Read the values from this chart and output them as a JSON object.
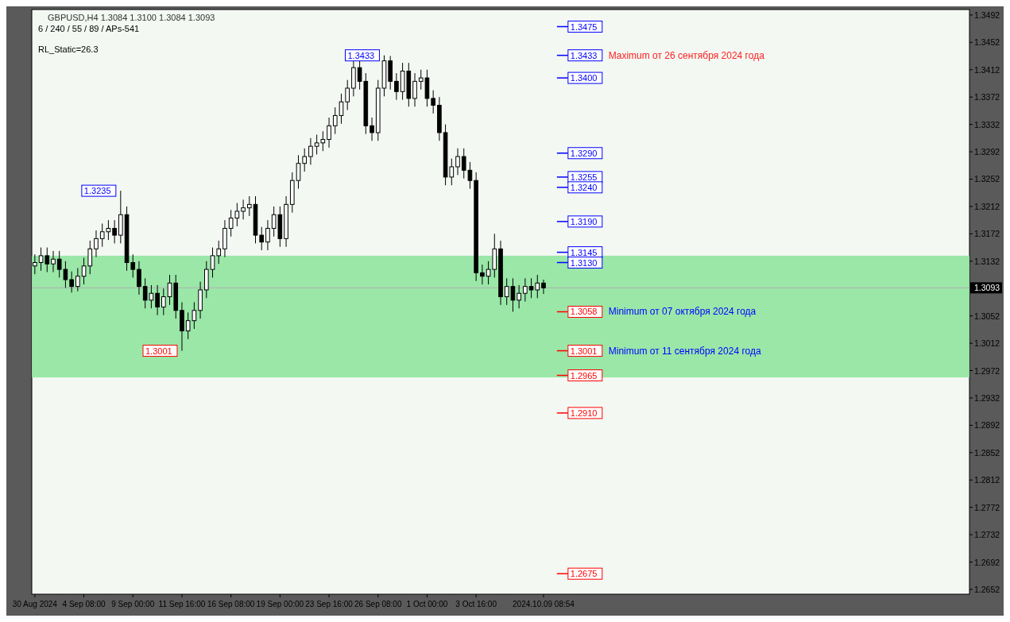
{
  "chart_data": {
    "type": "candlestick",
    "title": "GBPUSD,H4  1.3084 1.3100 1.3084 1.3093",
    "subtitle": "6 / 240 / 55 / 89 / APs-541",
    "categories": [
      "30 Aug 2024",
      null,
      null,
      null,
      null,
      null,
      null,
      null,
      "4 Sep 08:00",
      null,
      null,
      null,
      null,
      null,
      null,
      null,
      "9 Sep 00:00",
      null,
      null,
      null,
      null,
      null,
      null,
      null,
      "11 Sep 16:00",
      null,
      null,
      null,
      null,
      null,
      null,
      null,
      "16 Sep 08:00",
      null,
      null,
      null,
      null,
      null,
      null,
      null,
      "19 Sep 00:00",
      null,
      null,
      null,
      null,
      null,
      null,
      null,
      "23 Sep 16:00",
      null,
      null,
      null,
      null,
      null,
      null,
      null,
      "26 Sep 08:00",
      null,
      null,
      null,
      null,
      null,
      null,
      null,
      "1 Oct 00:00",
      null,
      null,
      null,
      null,
      null,
      null,
      null,
      "3 Oct 16:00",
      null,
      null,
      null,
      null,
      null,
      null,
      null,
      null,
      null,
      null,
      "2024.10.09 08:54",
      null,
      null,
      null,
      null,
      null,
      null,
      null,
      null,
      null,
      null,
      null,
      null,
      null,
      null,
      null,
      null,
      null,
      null,
      null,
      null,
      null,
      null,
      null,
      null,
      null,
      null,
      null,
      null,
      null,
      null,
      null,
      null,
      null,
      null,
      null,
      null,
      null,
      null,
      null,
      null,
      null,
      null,
      null,
      null,
      null,
      null,
      null,
      null,
      null,
      null,
      null,
      null,
      null,
      null,
      null,
      null,
      null,
      null,
      null,
      null,
      null,
      null,
      null,
      null,
      null,
      null,
      null,
      null,
      null
    ],
    "ohlc": [
      [
        1.3125,
        1.3142,
        1.3113,
        1.313
      ],
      [
        1.313,
        1.3152,
        1.3118,
        1.314
      ],
      [
        1.314,
        1.3152,
        1.3116,
        1.3128
      ],
      [
        1.3128,
        1.3147,
        1.3116,
        1.3135
      ],
      [
        1.3135,
        1.3147,
        1.3108,
        1.312
      ],
      [
        1.312,
        1.3132,
        1.3093,
        1.3105
      ],
      [
        1.3105,
        1.3117,
        1.3086,
        1.3095
      ],
      [
        1.3095,
        1.3122,
        1.3088,
        1.311
      ],
      [
        1.311,
        1.3137,
        1.3098,
        1.3125
      ],
      [
        1.3125,
        1.3162,
        1.3113,
        1.315
      ],
      [
        1.315,
        1.3177,
        1.3138,
        1.3165
      ],
      [
        1.3165,
        1.3187,
        1.3153,
        1.3175
      ],
      [
        1.3175,
        1.3192,
        1.3163,
        1.318
      ],
      [
        1.318,
        1.3192,
        1.3158,
        1.317
      ],
      [
        1.317,
        1.3235,
        1.3158,
        1.32
      ],
      [
        1.32,
        1.3212,
        1.3118,
        1.313
      ],
      [
        1.313,
        1.3142,
        1.3108,
        1.312
      ],
      [
        1.312,
        1.3132,
        1.3083,
        1.3095
      ],
      [
        1.3095,
        1.3107,
        1.3063,
        1.3075
      ],
      [
        1.3075,
        1.3097,
        1.3063,
        1.3085
      ],
      [
        1.3085,
        1.3097,
        1.3053,
        1.3065
      ],
      [
        1.3065,
        1.3092,
        1.3053,
        1.308
      ],
      [
        1.308,
        1.3112,
        1.3068,
        1.31
      ],
      [
        1.31,
        1.3112,
        1.3048,
        1.306
      ],
      [
        1.306,
        1.3072,
        1.3001,
        1.303
      ],
      [
        1.303,
        1.3057,
        1.3018,
        1.3045
      ],
      [
        1.3045,
        1.3072,
        1.3033,
        1.306
      ],
      [
        1.306,
        1.3102,
        1.3048,
        1.309
      ],
      [
        1.309,
        1.3132,
        1.3078,
        1.312
      ],
      [
        1.312,
        1.3152,
        1.3108,
        1.314
      ],
      [
        1.314,
        1.3162,
        1.3128,
        1.315
      ],
      [
        1.315,
        1.3192,
        1.3138,
        1.318
      ],
      [
        1.318,
        1.3207,
        1.3168,
        1.3195
      ],
      [
        1.3195,
        1.3217,
        1.3183,
        1.3205
      ],
      [
        1.3205,
        1.3222,
        1.3193,
        1.321
      ],
      [
        1.321,
        1.3227,
        1.3198,
        1.3215
      ],
      [
        1.3215,
        1.3227,
        1.3158,
        1.317
      ],
      [
        1.317,
        1.3182,
        1.3148,
        1.316
      ],
      [
        1.316,
        1.3192,
        1.3148,
        1.318
      ],
      [
        1.318,
        1.3212,
        1.3168,
        1.32
      ],
      [
        1.32,
        1.3212,
        1.3153,
        1.3165
      ],
      [
        1.3165,
        1.3227,
        1.3153,
        1.3215
      ],
      [
        1.3215,
        1.3262,
        1.3203,
        1.325
      ],
      [
        1.325,
        1.3287,
        1.3238,
        1.3275
      ],
      [
        1.3275,
        1.3297,
        1.3263,
        1.3285
      ],
      [
        1.3285,
        1.3312,
        1.3273,
        1.33
      ],
      [
        1.33,
        1.3317,
        1.3288,
        1.3305
      ],
      [
        1.3305,
        1.3322,
        1.3293,
        1.331
      ],
      [
        1.331,
        1.3342,
        1.3298,
        1.333
      ],
      [
        1.333,
        1.3357,
        1.3318,
        1.3345
      ],
      [
        1.3345,
        1.3377,
        1.3333,
        1.3365
      ],
      [
        1.3365,
        1.3397,
        1.3353,
        1.3385
      ],
      [
        1.3385,
        1.3427,
        1.3373,
        1.3415
      ],
      [
        1.3415,
        1.3427,
        1.3383,
        1.3395
      ],
      [
        1.3395,
        1.3407,
        1.3318,
        1.333
      ],
      [
        1.333,
        1.3342,
        1.3308,
        1.332
      ],
      [
        1.332,
        1.3397,
        1.3308,
        1.3385
      ],
      [
        1.3385,
        1.3433,
        1.3373,
        1.3425
      ],
      [
        1.3425,
        1.3432,
        1.3383,
        1.3395
      ],
      [
        1.3395,
        1.3407,
        1.3368,
        1.338
      ],
      [
        1.338,
        1.3422,
        1.3368,
        1.341
      ],
      [
        1.341,
        1.3422,
        1.3358,
        1.337
      ],
      [
        1.337,
        1.3407,
        1.3358,
        1.3395
      ],
      [
        1.3395,
        1.3412,
        1.3383,
        1.34
      ],
      [
        1.34,
        1.3412,
        1.3358,
        1.337
      ],
      [
        1.337,
        1.3382,
        1.3348,
        1.336
      ],
      [
        1.336,
        1.3372,
        1.3308,
        1.332
      ],
      [
        1.332,
        1.3332,
        1.3243,
        1.3255
      ],
      [
        1.3255,
        1.3282,
        1.3243,
        1.327
      ],
      [
        1.327,
        1.3297,
        1.3258,
        1.3285
      ],
      [
        1.3285,
        1.3297,
        1.3253,
        1.3265
      ],
      [
        1.3265,
        1.3277,
        1.3238,
        1.325
      ],
      [
        1.325,
        1.3262,
        1.3103,
        1.3115
      ],
      [
        1.3115,
        1.3127,
        1.3098,
        1.311
      ],
      [
        1.311,
        1.3132,
        1.3098,
        1.312
      ],
      [
        1.312,
        1.3172,
        1.3108,
        1.315
      ],
      [
        1.315,
        1.3162,
        1.3068,
        1.308
      ],
      [
        1.308,
        1.3107,
        1.3068,
        1.3095
      ],
      [
        1.3095,
        1.3107,
        1.3058,
        1.3075
      ],
      [
        1.3075,
        1.3097,
        1.3063,
        1.3085
      ],
      [
        1.3085,
        1.3107,
        1.3073,
        1.3095
      ],
      [
        1.3095,
        1.3107,
        1.3078,
        1.309
      ],
      [
        1.309,
        1.3112,
        1.3078,
        1.31
      ],
      [
        1.31,
        1.3105,
        1.3084,
        1.3093
      ],
      null,
      null,
      null,
      null,
      null,
      null,
      null,
      null,
      null,
      null,
      null,
      null,
      null,
      null,
      null,
      null,
      null,
      null,
      null,
      null,
      null,
      null,
      null,
      null,
      null,
      null,
      null,
      null,
      null,
      null,
      null,
      null,
      null,
      null,
      null,
      null,
      null,
      null,
      null,
      null,
      null,
      null,
      null,
      null,
      null,
      null,
      null,
      null,
      null,
      null,
      null,
      null,
      null,
      null,
      null,
      null,
      null,
      null,
      null,
      null,
      null,
      null,
      null,
      null,
      null,
      null,
      null,
      null,
      null
    ],
    "ylim": [
      1.2645,
      1.35
    ],
    "yticks": [
      1.2652,
      1.2692,
      1.2732,
      1.2772,
      1.2812,
      1.2852,
      1.2892,
      1.2932,
      1.2972,
      1.3012,
      1.3052,
      1.3132,
      1.3172,
      1.3212,
      1.3252,
      1.3292,
      1.3332,
      1.3372,
      1.3412,
      1.3452,
      1.3492
    ],
    "grid": false,
    "bands": [
      {
        "axis": "y",
        "from": 1.2962,
        "to": 1.314,
        "color": "#90e4a0"
      }
    ],
    "ref_lines": [
      {
        "axis": "y",
        "value": 1.3093,
        "label": "1.3093",
        "color": "#b0b0b0",
        "line_style": "solid"
      },
      {
        "axis": "y",
        "value": 1.3475,
        "label": "1.3475",
        "color": "#0000ff"
      },
      {
        "axis": "y",
        "value": 1.3433,
        "label": "1.3433",
        "color": "#0000ff"
      },
      {
        "axis": "y",
        "value": 1.34,
        "label": "1.3400",
        "color": "#0000ff"
      },
      {
        "axis": "y",
        "value": 1.329,
        "label": "1.3290",
        "color": "#0000ff"
      },
      {
        "axis": "y",
        "value": 1.3255,
        "label": "1.3255",
        "color": "#0000ff"
      },
      {
        "axis": "y",
        "value": 1.324,
        "label": "1.3240",
        "color": "#0000ff"
      },
      {
        "axis": "y",
        "value": 1.319,
        "label": "1.3190",
        "color": "#0000ff"
      },
      {
        "axis": "y",
        "value": 1.3145,
        "label": "1.3145",
        "color": "#0000ff"
      },
      {
        "axis": "y",
        "value": 1.313,
        "label": "1.3130",
        "color": "#0000ff"
      },
      {
        "axis": "y",
        "value": 1.3058,
        "label": "1.3058",
        "color": "#ff0000"
      },
      {
        "axis": "y",
        "value": 1.3001,
        "label": "1.3001",
        "color": "#ff0000"
      },
      {
        "axis": "y",
        "value": 1.2965,
        "label": "1.2965",
        "color": "#ff0000"
      },
      {
        "axis": "y",
        "value": 1.291,
        "label": "1.2910",
        "color": "#ff0000"
      },
      {
        "axis": "y",
        "value": 1.2675,
        "label": "1.2675",
        "color": "#ff0000"
      }
    ],
    "annotations": [
      {
        "text": "1.3235",
        "y": 1.3235
      },
      {
        "text": "1.3433",
        "y": 1.3433
      },
      {
        "text": "1.3001",
        "y": 1.3001
      },
      "Maximum от 26 сентября 2024 года",
      "Minimum от 07 октября 2024 года",
      "Minimum от 11 сентября 2024 года",
      "RL_Static=26.3"
    ]
  }
}
